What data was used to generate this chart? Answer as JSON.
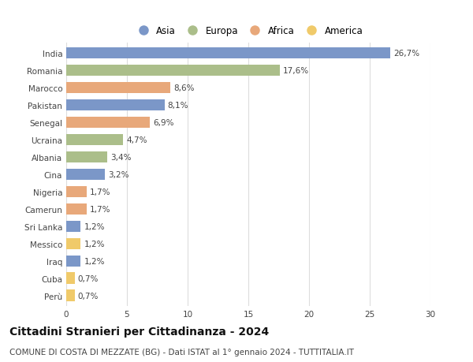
{
  "countries": [
    "India",
    "Romania",
    "Marocco",
    "Pakistan",
    "Senegal",
    "Ucraina",
    "Albania",
    "Cina",
    "Nigeria",
    "Camerun",
    "Sri Lanka",
    "Messico",
    "Iraq",
    "Cuba",
    "Perù"
  ],
  "values": [
    26.7,
    17.6,
    8.6,
    8.1,
    6.9,
    4.7,
    3.4,
    3.2,
    1.7,
    1.7,
    1.2,
    1.2,
    1.2,
    0.7,
    0.7
  ],
  "labels": [
    "26,7%",
    "17,6%",
    "8,6%",
    "8,1%",
    "6,9%",
    "4,7%",
    "3,4%",
    "3,2%",
    "1,7%",
    "1,7%",
    "1,2%",
    "1,2%",
    "1,2%",
    "0,7%",
    "0,7%"
  ],
  "continents": [
    "Asia",
    "Europa",
    "Africa",
    "Asia",
    "Africa",
    "Europa",
    "Europa",
    "Asia",
    "Africa",
    "Africa",
    "Asia",
    "America",
    "Asia",
    "America",
    "America"
  ],
  "continent_colors": {
    "Asia": "#7B97C8",
    "Europa": "#ABBE8A",
    "Africa": "#E8A87A",
    "America": "#F0CA6A"
  },
  "legend_order": [
    "Asia",
    "Europa",
    "Africa",
    "America"
  ],
  "title": "Cittadini Stranieri per Cittadinanza - 2024",
  "subtitle": "COMUNE DI COSTA DI MEZZATE (BG) - Dati ISTAT al 1° gennaio 2024 - TUTTITALIA.IT",
  "xlim": [
    0,
    30
  ],
  "xticks": [
    0,
    5,
    10,
    15,
    20,
    25,
    30
  ],
  "bg_color": "#ffffff",
  "grid_color": "#dddddd",
  "bar_height": 0.65,
  "title_fontsize": 10,
  "subtitle_fontsize": 7.5,
  "label_fontsize": 7.5,
  "tick_fontsize": 7.5,
  "legend_fontsize": 8.5
}
